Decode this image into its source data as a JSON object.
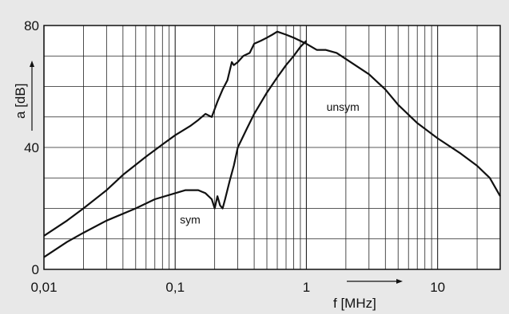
{
  "chart_data": {
    "type": "line",
    "xscale": "log",
    "xlim": [
      0.01,
      30
    ],
    "ylim": [
      0,
      80
    ],
    "grid": true,
    "xlabel": "f [MHz]",
    "ylabel": "a [dB]",
    "xticks": [
      {
        "value": 0.01,
        "label": "0,01"
      },
      {
        "value": 0.1,
        "label": "0,1"
      },
      {
        "value": 1,
        "label": "1"
      },
      {
        "value": 10,
        "label": "10"
      }
    ],
    "yticks": [
      {
        "value": 0,
        "label": "0"
      },
      {
        "value": 40,
        "label": "40"
      },
      {
        "value": 80,
        "label": "80"
      }
    ],
    "series": [
      {
        "name": "unsym",
        "x": [
          0.01,
          0.015,
          0.02,
          0.03,
          0.04,
          0.06,
          0.08,
          0.1,
          0.13,
          0.15,
          0.17,
          0.19,
          0.21,
          0.23,
          0.25,
          0.27,
          0.28,
          0.3,
          0.33,
          0.37,
          0.4,
          0.45,
          0.5,
          0.55,
          0.6,
          0.7,
          0.8,
          1.0,
          1.2,
          1.4,
          1.7,
          2.0,
          3.0,
          4.0,
          5.0,
          7.0,
          10.0,
          15.0,
          20.0,
          25.0,
          30.0
        ],
        "y": [
          11,
          16,
          20,
          26,
          31,
          37,
          41,
          44,
          47,
          49,
          51,
          50,
          55,
          59,
          62,
          68,
          67,
          68,
          70,
          71,
          74,
          75,
          76,
          77,
          78,
          77,
          76,
          74,
          72,
          72,
          71,
          69,
          64,
          59,
          54,
          48,
          43,
          38,
          34,
          30,
          24
        ]
      },
      {
        "name": "sym",
        "x": [
          0.01,
          0.015,
          0.02,
          0.03,
          0.05,
          0.07,
          0.1,
          0.12,
          0.15,
          0.17,
          0.19,
          0.2,
          0.21,
          0.22,
          0.23,
          0.24,
          0.26,
          0.28,
          0.3,
          0.35,
          0.4,
          0.5,
          0.6,
          0.7,
          0.8,
          0.9,
          1.0
        ],
        "y": [
          4,
          9,
          12,
          16,
          20,
          23,
          25,
          26,
          26,
          25,
          23,
          20,
          24,
          21,
          20,
          23,
          29,
          34,
          40,
          46,
          51,
          58,
          63,
          67,
          70,
          73,
          75
        ]
      }
    ],
    "annotations": [
      {
        "text": "unsym",
        "x": 1.9,
        "y": 52
      },
      {
        "text": "sym",
        "x": 0.13,
        "y": 15
      }
    ]
  }
}
